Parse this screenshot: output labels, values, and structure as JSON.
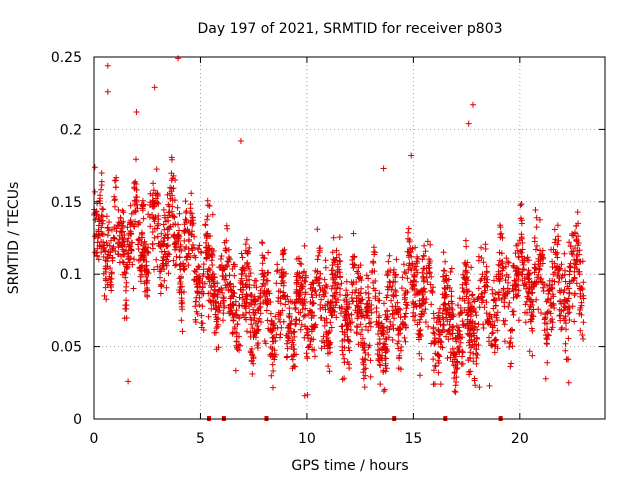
{
  "chart_data": {
    "type": "scatter",
    "title": "Day 197 of 2021, SRMTID for receiver p803",
    "xlabel": "GPS time / hours",
    "ylabel": "SRMTID / TECUs",
    "xlim": [
      0,
      24
    ],
    "ylim": [
      0,
      0.25
    ],
    "x_ticks": [
      0,
      5,
      10,
      15,
      20
    ],
    "x_tick_labels": [
      "0",
      "5",
      "10",
      "15",
      "20"
    ],
    "y_ticks": [
      0,
      0.05,
      0.1,
      0.15,
      0.2,
      0.25
    ],
    "y_tick_labels": [
      "0",
      "0.05",
      "0.1",
      "0.15",
      "0.2",
      "0.25"
    ],
    "grid": true,
    "marker": "+",
    "color": "#e00000",
    "data_range_hours": [
      0,
      23
    ],
    "baseline_gap_markers_x": [
      5.4,
      6.1,
      8.1,
      14.1,
      16.5,
      19.1
    ],
    "trend_profile": {
      "x": [
        0,
        1,
        2,
        3,
        3.8,
        4.5,
        5.5,
        6.5,
        7.5,
        8.5,
        9.5,
        10.5,
        11.5,
        12.5,
        13.5,
        14.5,
        15.2,
        16,
        17,
        17.7,
        18.5,
        19.5,
        20.3,
        21,
        22,
        23
      ],
      "y": [
        0.12,
        0.12,
        0.125,
        0.13,
        0.13,
        0.11,
        0.095,
        0.085,
        0.08,
        0.075,
        0.07,
        0.075,
        0.08,
        0.075,
        0.065,
        0.085,
        0.095,
        0.07,
        0.06,
        0.075,
        0.075,
        0.09,
        0.1,
        0.09,
        0.09,
        0.1
      ]
    },
    "notable_points": [
      {
        "x": 0.65,
        "y": 0.244
      },
      {
        "x": 0.65,
        "y": 0.226
      },
      {
        "x": 2.85,
        "y": 0.229
      },
      {
        "x": 3.95,
        "y": 0.249
      },
      {
        "x": 2.0,
        "y": 0.212
      },
      {
        "x": 6.9,
        "y": 0.192
      },
      {
        "x": 17.8,
        "y": 0.217
      },
      {
        "x": 17.6,
        "y": 0.204
      },
      {
        "x": 13.6,
        "y": 0.173
      },
      {
        "x": 14.9,
        "y": 0.182
      },
      {
        "x": 1.6,
        "y": 0.026
      },
      {
        "x": 9.9,
        "y": 0.016
      },
      {
        "x": 18.1,
        "y": 0.022
      },
      {
        "x": 22.3,
        "y": 0.025
      }
    ]
  }
}
